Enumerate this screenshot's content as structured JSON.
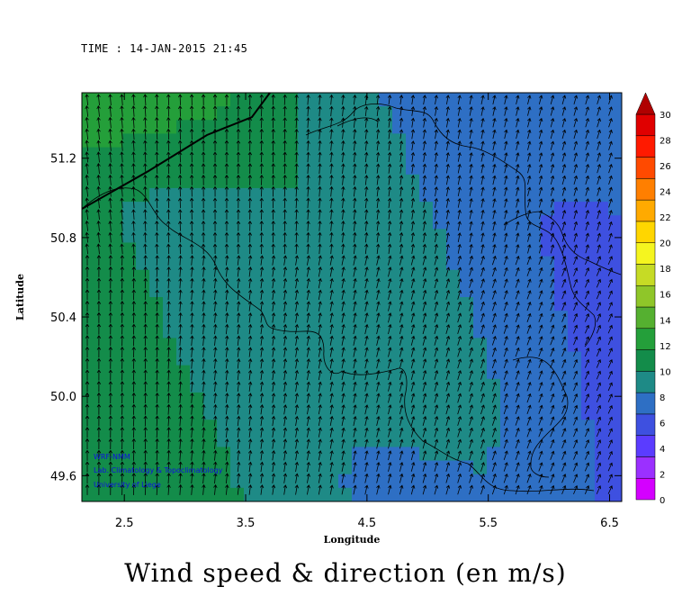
{
  "time_label": "TIME : 14-JAN-2015 21:45",
  "main_title": "Wind speed & direction (en m/s)",
  "credits": [
    "WRF-NMM",
    "Lab. Climatology & Topoclimatology",
    "University of Liege"
  ],
  "colors": {
    "colorbar": [
      "#d400ff",
      "#9b30ff",
      "#5b3cff",
      "#3e50e0",
      "#2e6fc4",
      "#1e8a86",
      "#138c4a",
      "#249f3a",
      "#55b030",
      "#8fc629",
      "#c6db25",
      "#f5f51f",
      "#ffd600",
      "#ffaa00",
      "#ff7f00",
      "#ff4a00",
      "#ff1a00",
      "#e00000",
      "#b00000"
    ],
    "background": "#ffffff",
    "arrow": "#000000",
    "border": "#000000",
    "credit_text": "#1010e0"
  },
  "chart_data": {
    "type": "map",
    "xlabel": "Longitude",
    "ylabel": "Latitude",
    "xlim": [
      2.15,
      6.6
    ],
    "ylim": [
      49.47,
      51.53
    ],
    "x_ticks": [
      "2.5",
      "3.5",
      "4.5",
      "5.5",
      "6.5"
    ],
    "y_ticks": [
      "49.6",
      "50.0",
      "50.4",
      "50.8",
      "51.2"
    ],
    "colorbar_ticks": [
      "0",
      "2",
      "4",
      "6",
      "8",
      "10",
      "12",
      "14",
      "16",
      "18",
      "20",
      "22",
      "24",
      "26",
      "28",
      "30"
    ],
    "colorbar_range": [
      0,
      30
    ],
    "wind_direction": "from south-southwest",
    "speed_field_ms": {
      "north_west_coast": 15,
      "west_center": 11,
      "center": 9,
      "east": 6,
      "south_east": 5
    }
  }
}
